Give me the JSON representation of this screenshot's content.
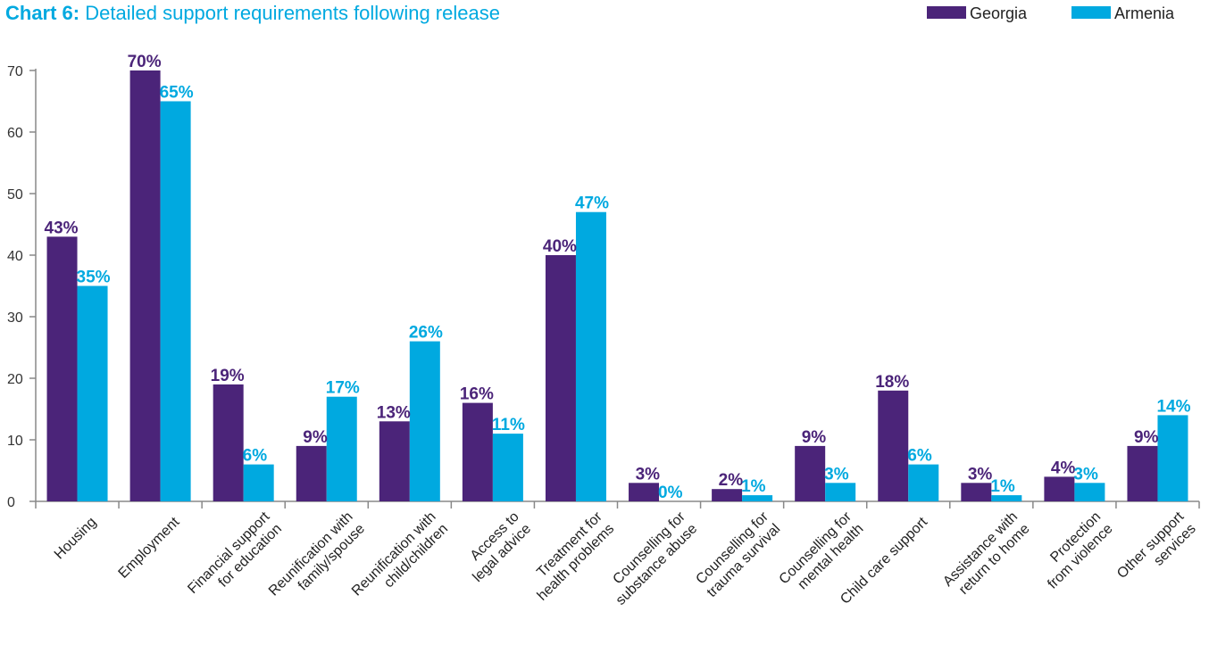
{
  "chart_data": {
    "type": "bar",
    "title_prefix": "Chart 6:",
    "title": "Detailed support requirements following release",
    "xlabel": "",
    "ylabel": "",
    "ylim": [
      0,
      70
    ],
    "yticks": [
      0,
      10,
      20,
      30,
      40,
      50,
      60,
      70
    ],
    "grid": false,
    "legend_position": "top-right",
    "categories": [
      [
        "Housing"
      ],
      [
        "Employment"
      ],
      [
        "Financial support",
        "for education"
      ],
      [
        "Reunification with",
        "family/spouse"
      ],
      [
        "Reunification with",
        "child/children"
      ],
      [
        "Access to",
        "legal advice"
      ],
      [
        "Treatment for",
        "health problems"
      ],
      [
        "Counselling for",
        "substance abuse"
      ],
      [
        "Counselling for",
        "trauma survival"
      ],
      [
        "Counselling for",
        "mental health"
      ],
      [
        "Child care support"
      ],
      [
        "Assistance with",
        "return to home"
      ],
      [
        "Protection",
        "from violence"
      ],
      [
        "Other support",
        "services"
      ]
    ],
    "series": [
      {
        "name": "Georgia",
        "color": "#4b2479",
        "values": [
          43,
          70,
          19,
          9,
          13,
          16,
          40,
          3,
          2,
          9,
          18,
          3,
          4,
          9
        ],
        "labels": [
          "43%",
          "70%",
          "19%",
          "9%",
          "13%",
          "16%",
          "40%",
          "3%",
          "2%",
          "9%",
          "18%",
          "3%",
          "4%",
          "9%"
        ]
      },
      {
        "name": "Armenia",
        "color": "#00a9e0",
        "values": [
          35,
          65,
          6,
          17,
          26,
          11,
          47,
          0,
          1,
          3,
          6,
          1,
          3,
          14
        ],
        "labels": [
          "35%",
          "65%",
          "6%",
          "17%",
          "26%",
          "11%",
          "47%",
          "0%",
          "1%",
          "3%",
          "6%",
          "1%",
          "3%",
          "14%"
        ]
      }
    ]
  }
}
